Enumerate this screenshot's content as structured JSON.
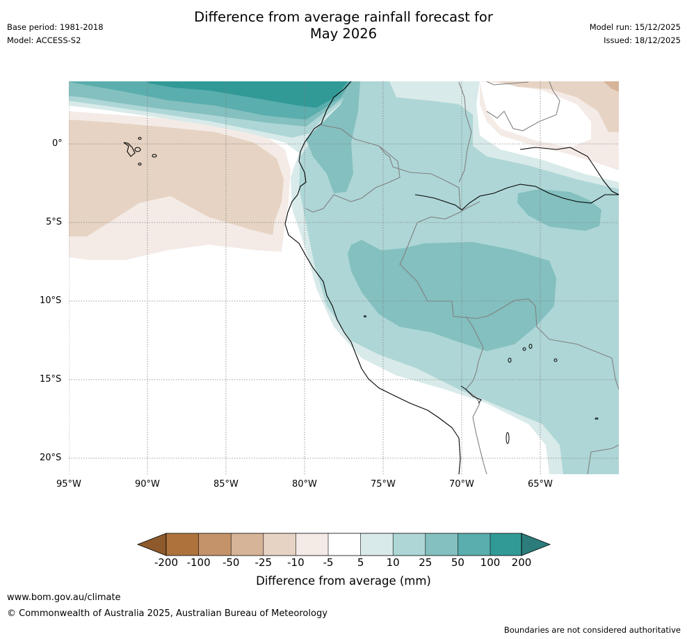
{
  "header": {
    "title_line1": "Difference from average rainfall forecast for",
    "title_line2": "May 2026",
    "base_period": "Base period: 1981-2018",
    "model": "Model: ACCESS-S2",
    "model_run": "Model run: 15/12/2025",
    "issued": "Issued: 18/12/2025"
  },
  "map": {
    "lat_labels": [
      "0°",
      "5°S",
      "10°S",
      "15°S",
      "20°S"
    ],
    "lon_labels": [
      "95°W",
      "90°W",
      "85°W",
      "80°W",
      "75°W",
      "70°W",
      "65°W"
    ],
    "region": "Western South America and eastern Pacific (Galápagos, Ecuador, Peru, Bolivia)"
  },
  "colorbar": {
    "title": "Difference from average (mm)",
    "ticks": [
      "-200",
      "-100",
      "-50",
      "-25",
      "-10",
      "-5",
      "5",
      "10",
      "25",
      "50",
      "100",
      "200"
    ],
    "colors": {
      "lt_-200": "#8e5a2c",
      "b_-200_-100": "#ae733d",
      "b_-100_-50": "#c4936a",
      "b_-50_-25": "#d6b497",
      "b_-25_-10": "#e6d3c3",
      "b_-10_-5": "#f4ebe6",
      "b_-5_5": "#ffffff",
      "b_5_10": "#d8eae9",
      "b_10_25": "#aed6d6",
      "b_25_50": "#83c0bf",
      "b_50_100": "#5aaead",
      "b_100_200": "#319a97",
      "gt_200": "#2b7c7b"
    }
  },
  "footer": {
    "url": "www.bom.gov.au/climate",
    "copyright": "© Commonwealth of Australia 2025, Australian Bureau of Meteorology",
    "note": "Boundaries are not considered authoritative"
  }
}
